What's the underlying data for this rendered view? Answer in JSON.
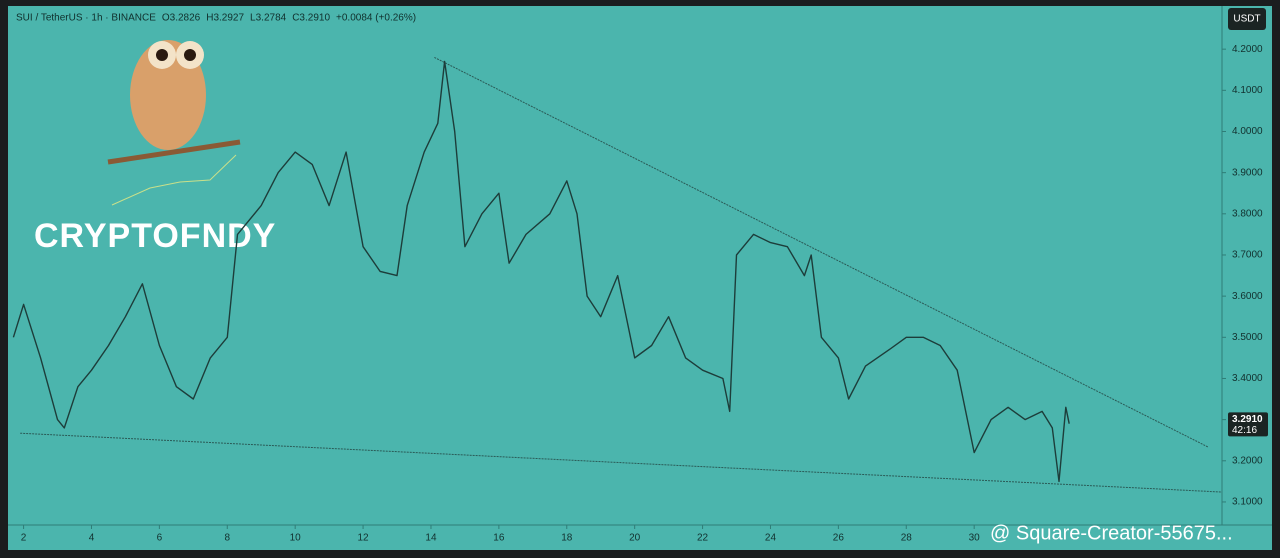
{
  "chart_data": {
    "type": "line",
    "header": [
      "SUI / TetherUS · 1h · BINANCE",
      "O3.2826",
      "H3.2927",
      "L3.2784",
      "C3.2910",
      "+0.0084 (+0.26%)"
    ],
    "currency": "USDT",
    "watermark": "CRYPTOFNDY",
    "source": "@ Square-Creator-55675...",
    "x": [
      1.7,
      2.0,
      2.5,
      3.0,
      3.2,
      3.6,
      4.0,
      4.5,
      5.0,
      5.5,
      6.0,
      6.5,
      7.0,
      7.5,
      8.0,
      8.3,
      9.0,
      9.5,
      10.0,
      10.5,
      11.0,
      11.5,
      12.0,
      12.5,
      13.0,
      13.3,
      13.8,
      14.2,
      14.4,
      14.7,
      15.0,
      15.5,
      16.0,
      16.3,
      16.8,
      17.5,
      18.0,
      18.3,
      18.6,
      19.0,
      19.5,
      20.0,
      20.5,
      21.0,
      21.5,
      22.0,
      22.6,
      22.8,
      23.0,
      23.5,
      24.0,
      24.5,
      25.0,
      25.2,
      25.5,
      26.0,
      26.3,
      26.8,
      27.5,
      28.0,
      28.5,
      29.0,
      29.5,
      29.8,
      30.0,
      30.5,
      31.0,
      31.5,
      32.0,
      32.3,
      32.5,
      32.7,
      32.8
    ],
    "series": [
      {
        "name": "SUI / TetherUS",
        "color": "#1d3d3a",
        "values": [
          3.5,
          3.58,
          3.45,
          3.3,
          3.28,
          3.38,
          3.42,
          3.48,
          3.55,
          3.63,
          3.48,
          3.38,
          3.35,
          3.45,
          3.5,
          3.75,
          3.82,
          3.9,
          3.95,
          3.92,
          3.82,
          3.95,
          3.72,
          3.66,
          3.65,
          3.82,
          3.95,
          4.02,
          4.17,
          4.0,
          3.72,
          3.8,
          3.85,
          3.68,
          3.75,
          3.8,
          3.88,
          3.8,
          3.6,
          3.55,
          3.65,
          3.45,
          3.48,
          3.55,
          3.45,
          3.42,
          3.4,
          3.32,
          3.7,
          3.75,
          3.73,
          3.72,
          3.65,
          3.7,
          3.5,
          3.45,
          3.35,
          3.43,
          3.47,
          3.5,
          3.5,
          3.48,
          3.42,
          3.3,
          3.22,
          3.3,
          3.33,
          3.3,
          3.32,
          3.28,
          3.15,
          3.33,
          3.29
        ]
      }
    ],
    "trendlines": [
      {
        "x": [
          14.1,
          36.9
        ],
        "values": [
          4.18,
          3.233
        ]
      },
      {
        "x": [
          1.9,
          37.3
        ],
        "values": [
          3.267,
          3.124
        ]
      }
    ],
    "price_label": {
      "value": 3.291,
      "label": "3.2910"
    },
    "countdown": "42:16",
    "xlim": [
      1.6,
      37.3
    ],
    "ylim": [
      3.044,
      4.3
    ],
    "xticks": [
      2,
      4,
      6,
      8,
      10,
      12,
      14,
      16,
      18,
      20,
      22,
      24,
      26,
      28,
      30
    ],
    "yticks": [
      {
        "value": 3.1,
        "label": "3.1000"
      },
      {
        "value": 3.2,
        "label": "3.2000"
      },
      {
        "value": 3.3,
        "label": "3.3000"
      },
      {
        "value": 3.4,
        "label": "3.4000"
      },
      {
        "value": 3.5,
        "label": "3.5000"
      },
      {
        "value": 3.6,
        "label": "3.6000"
      },
      {
        "value": 3.7,
        "label": "3.7000"
      },
      {
        "value": 3.8,
        "label": "3.8000"
      },
      {
        "value": 3.9,
        "label": "3.9000"
      },
      {
        "value": 4.0,
        "label": "4.0000"
      },
      {
        "value": 4.1,
        "label": "4.1000"
      },
      {
        "value": 4.2,
        "label": "4.2000"
      }
    ]
  }
}
